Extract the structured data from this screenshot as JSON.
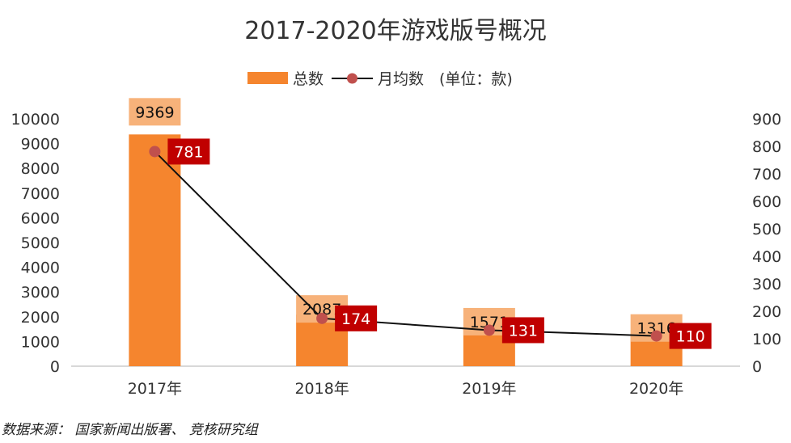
{
  "chart_data": {
    "type": "bar",
    "title": "2017-2020年游戏版号概况",
    "categories": [
      "2017年",
      "2018年",
      "2019年",
      "2020年"
    ],
    "series": [
      {
        "name": "总数",
        "kind": "bar",
        "axis": "left",
        "values": [
          9369,
          2087,
          1571,
          1316
        ]
      },
      {
        "name": "月均数",
        "kind": "line",
        "axis": "right",
        "values": [
          781,
          174,
          131,
          110
        ]
      }
    ],
    "unit_note": "(单位：款)",
    "left_axis": {
      "ylim": [
        0,
        10000
      ],
      "ticks": [
        0,
        1000,
        2000,
        3000,
        4000,
        5000,
        6000,
        7000,
        8000,
        9000,
        10000
      ]
    },
    "right_axis": {
      "ylim": [
        0,
        900
      ],
      "ticks": [
        0,
        100,
        200,
        300,
        400,
        500,
        600,
        700,
        800,
        900
      ]
    },
    "grid": false,
    "legend_position": "top-center",
    "colors": {
      "bar": "#f5852e",
      "bar_label_bg": "#f7b27a",
      "line": "#111111",
      "marker": "#c0504d",
      "avg_label_bg": "#c00000",
      "axis": "#cccccc"
    }
  },
  "source": "数据来源： 国家新闻出版署、 竞核研究组"
}
